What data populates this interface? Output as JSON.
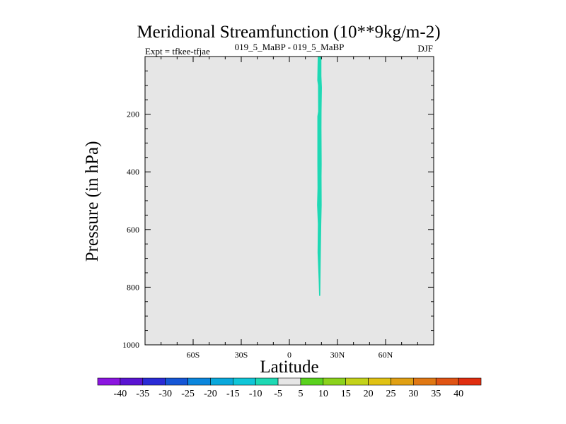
{
  "chart_data": {
    "type": "contour",
    "title": "Meridional Streamfunction (10**9kg/m-2)",
    "subtitle_left": "Expt = tfkee-tfjae",
    "subtitle_center": "019_5_MaBP - 019_5_MaBP",
    "subtitle_right": "DJF",
    "xlabel": "Latitude",
    "ylabel": "Pressure (in hPa)",
    "xlim": [
      -90,
      90
    ],
    "ylim": [
      1000,
      0
    ],
    "x_ticks": [
      {
        "value": -60,
        "label": "60S"
      },
      {
        "value": -30,
        "label": "30S"
      },
      {
        "value": 0,
        "label": "0"
      },
      {
        "value": 30,
        "label": "30N"
      },
      {
        "value": 60,
        "label": "60N"
      }
    ],
    "y_ticks": [
      {
        "value": 200,
        "label": "200"
      },
      {
        "value": 400,
        "label": "400"
      },
      {
        "value": 600,
        "label": "600"
      },
      {
        "value": 800,
        "label": "800"
      },
      {
        "value": 1000,
        "label": "1000"
      }
    ],
    "background_color": "#e6e6e6",
    "contour_feature": {
      "level_range": [
        -10,
        -5
      ],
      "color": "#1ed9b4",
      "center_lat": 19,
      "pressure_top": 0,
      "pressure_bottom": 830
    },
    "colorbar": {
      "levels": [
        "-40",
        "-35",
        "-30",
        "-25",
        "-20",
        "-15",
        "-10",
        "-5",
        "5",
        "10",
        "15",
        "20",
        "25",
        "30",
        "35",
        "40"
      ],
      "colors": [
        "#8b15e0",
        "#5a14d2",
        "#2a2bd6",
        "#1556d6",
        "#0b86dd",
        "#0aa8dc",
        "#10c6d8",
        "#1ed9b4",
        "#e6e6e6",
        "#5ad21e",
        "#8bd21c",
        "#c3d21a",
        "#e0c214",
        "#e0a014",
        "#e07814",
        "#e05414",
        "#e02e10"
      ]
    }
  }
}
